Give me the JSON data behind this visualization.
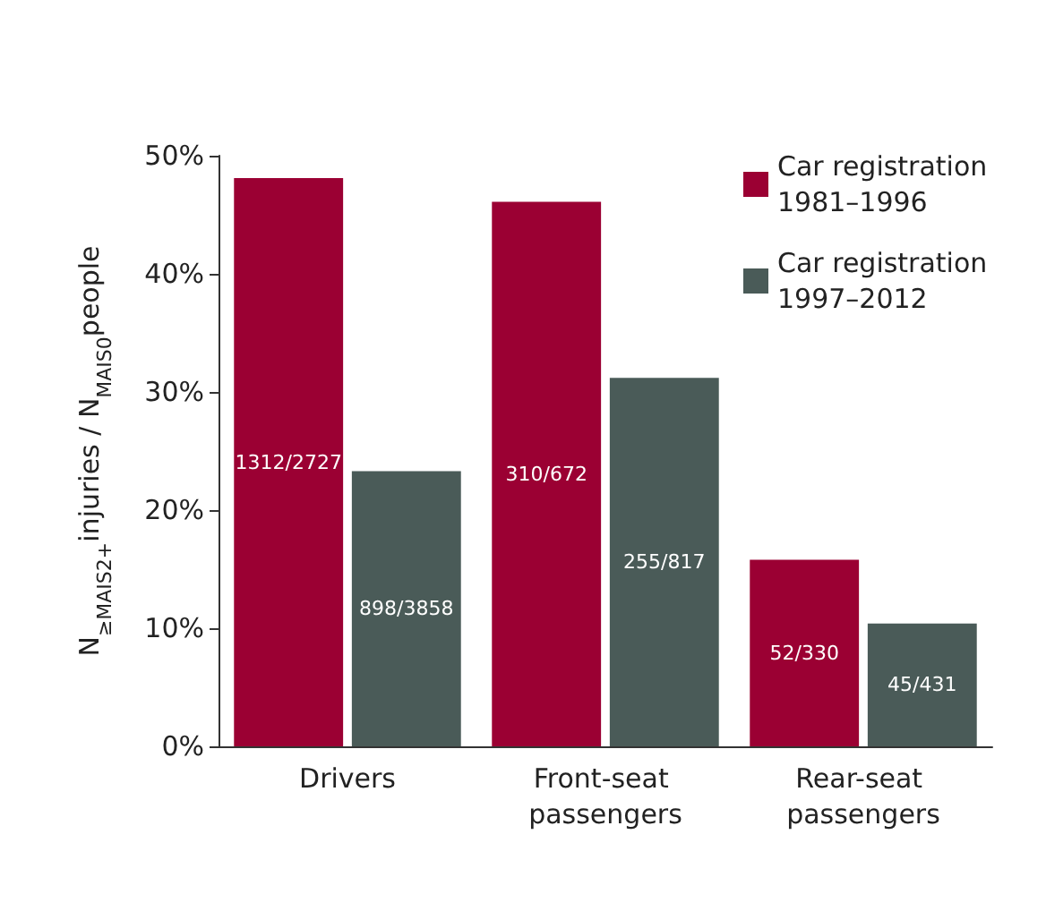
{
  "chart_data": {
    "type": "bar",
    "ylabel": "N$_{≥MAIS2+}$injuries / N$_{MAIS0}$people",
    "categories": [
      "Drivers",
      "Front-seat passengers",
      "Rear-seat passengers"
    ],
    "series": [
      {
        "name": "Car registration 1981–1996",
        "color": "#9b0033",
        "values": [
          48.1,
          46.1,
          15.8
        ],
        "value_labels": [
          "1312/2727",
          "310/672",
          "52/330"
        ]
      },
      {
        "name": "Car registration 1997–2012",
        "color": "#4a5b58",
        "values": [
          23.3,
          31.2,
          10.4
        ],
        "value_labels": [
          "898/3858",
          "255/817",
          "45/431"
        ]
      }
    ],
    "ylim": [
      0,
      50
    ],
    "yticks": [
      {
        "value": 0,
        "label": "0%"
      },
      {
        "value": 10,
        "label": "10%"
      },
      {
        "value": 20,
        "label": "20%"
      },
      {
        "value": 30,
        "label": "30%"
      },
      {
        "value": 40,
        "label": "40%"
      },
      {
        "value": 50,
        "label": "50%"
      }
    ],
    "grid": false,
    "legend": "top right"
  }
}
